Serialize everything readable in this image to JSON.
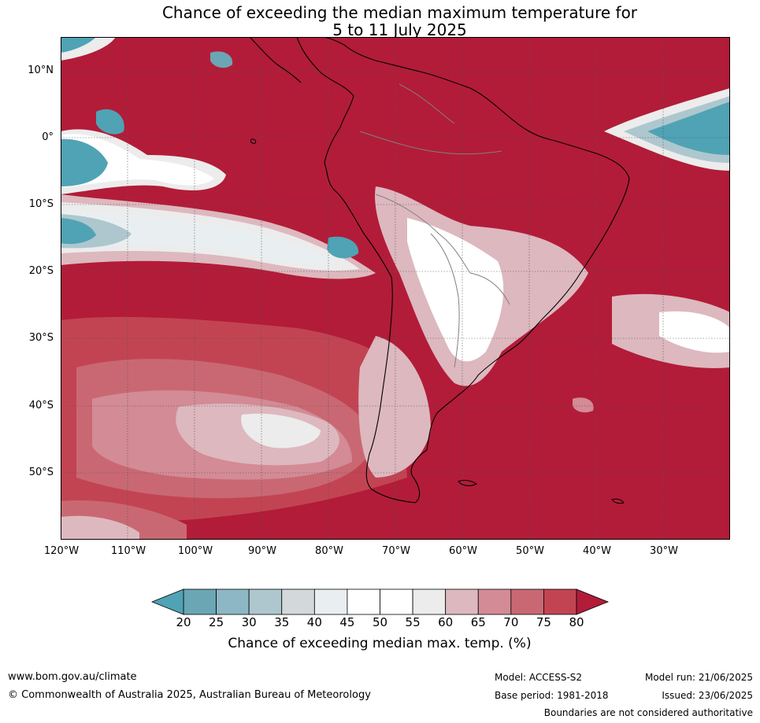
{
  "title": {
    "line1": "Chance of exceeding the median maximum temperature for",
    "line2": "5 to 11 July 2025"
  },
  "map": {
    "region": "South America",
    "lat_labels": [
      "10°N",
      "0°",
      "10°S",
      "20°S",
      "30°S",
      "40°S",
      "50°S"
    ],
    "lon_labels": [
      "120°W",
      "110°W",
      "100°W",
      "90°W",
      "80°W",
      "70°W",
      "60°W",
      "50°W",
      "40°W",
      "30°W"
    ],
    "extent": {
      "lon_min": -122,
      "lon_max": -22,
      "lat_min": -60,
      "lat_max": 15
    },
    "colors": {
      "ocean_dominant": "#b21c38",
      "land_outline": "#000000",
      "border": "#808080",
      "gridline": "#333333"
    }
  },
  "colorbar": {
    "ticks": [
      "20",
      "25",
      "30",
      "35",
      "40",
      "45",
      "50",
      "55",
      "60",
      "65",
      "70",
      "75",
      "80"
    ],
    "colors": [
      "#6ba6b4",
      "#8db7c4",
      "#aec7ce",
      "#d3d8da",
      "#e9eff1",
      "#ffffff",
      "#ffffff",
      "#ececec",
      "#ddb8bf",
      "#d38b95",
      "#c96873",
      "#c24453"
    ],
    "under_color": "#4fa3b5",
    "over_color": "#b21c38",
    "label": "Chance of exceeding median max. temp. (%)"
  },
  "footer": {
    "url": "www.bom.gov.au/climate",
    "copyright": "© Commonwealth of Australia 2025, Australian Bureau of Meteorology",
    "model": "Model: ACCESS-S2",
    "base_period": "Base period: 1981-2018",
    "model_run": "Model run: 21/06/2025",
    "issued": "Issued: 23/06/2025",
    "disclaimer": "Boundaries are not considered authoritative"
  }
}
